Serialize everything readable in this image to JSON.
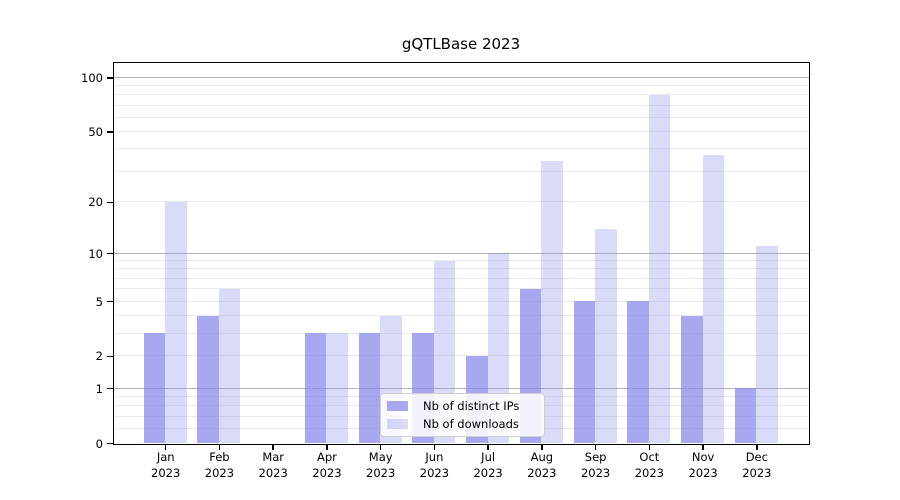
{
  "figure": {
    "title": "gQTLBase 2023"
  },
  "chart_data": {
    "type": "bar",
    "title": "gQTLBase 2023",
    "categories": [
      "Jan 2023",
      "Feb 2023",
      "Mar 2023",
      "Apr 2023",
      "May 2023",
      "Jun 2023",
      "Jul 2023",
      "Aug 2023",
      "Sep 2023",
      "Oct 2023",
      "Nov 2023",
      "Dec 2023"
    ],
    "series": [
      {
        "name": "Nb of distinct IPs",
        "color": "rgba(134,134,235,0.72)",
        "values": [
          3,
          4,
          0,
          3,
          3,
          3,
          2,
          6,
          5,
          5,
          4,
          1
        ]
      },
      {
        "name": "Nb of downloads",
        "color": "rgba(134,134,235,0.30)",
        "values": [
          20,
          6,
          0,
          3,
          4,
          9,
          10,
          34,
          14,
          80,
          37,
          11
        ]
      }
    ],
    "xlabel": "",
    "ylabel": "",
    "yscale": "log1p",
    "ylim": [
      0,
      121
    ],
    "y_ticks": [
      0,
      1,
      2,
      5,
      10,
      20,
      50,
      100
    ],
    "y_major_gridlines": [
      1,
      10,
      100
    ],
    "y_minor_gridlines": [
      0.2,
      0.4,
      0.6,
      0.8,
      2,
      3,
      4,
      5,
      6,
      7,
      8,
      9,
      20,
      30,
      40,
      50,
      60,
      70,
      80,
      90
    ],
    "grid": "horizontal",
    "legend_position": "lower center",
    "axis_color": "#000000",
    "major_grid_color": "#b3b3b3",
    "minor_grid_color": "#eaeaea",
    "background_color": "#ffffff"
  }
}
